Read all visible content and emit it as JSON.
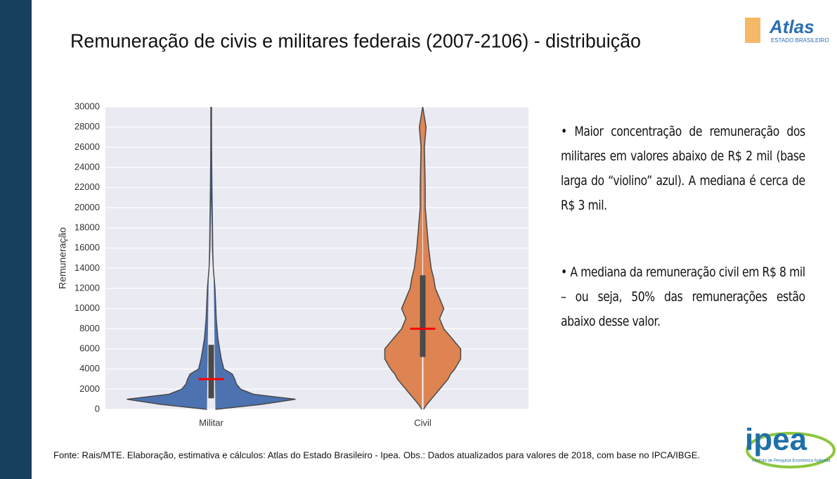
{
  "title": "Remuneração de civis e militares federais (2007-2106) - distribuição",
  "logos": {
    "atlas": "Atlas",
    "atlas_sub": "ESTADO BRASILEIRO",
    "ipea": "ipea",
    "ipea_sub": "Instituto de Pesquisa Econômica Aplicada"
  },
  "bullets": [
    "• Maior concentração de remuneração dos militares em valores abaixo de R$ 2 mil (base larga do “violino” azul). A mediana é cerca de R$ 3 mil.",
    "• A mediana da remuneração civil em R$ 8 mil – ou seja, 50% das remunerações estão abaixo desse valor."
  ],
  "footer": "Fonte: Rais/MTE. Elaboração, estimativa e cálculos: Atlas do Estado Brasileiro - Ipea. Obs.: Dados atualizados para valores de 2018, com base no IPCA/IBGE.",
  "chart_data": {
    "type": "violin",
    "y_label": "Remuneração",
    "categories": [
      "Militar",
      "Civil"
    ],
    "ylim": [
      0,
      30000
    ],
    "yticks": [
      0,
      2000,
      4000,
      6000,
      8000,
      10000,
      12000,
      14000,
      16000,
      18000,
      20000,
      22000,
      24000,
      26000,
      28000,
      30000
    ],
    "grid": true,
    "density_y": [
      0,
      500,
      1000,
      1500,
      2000,
      2500,
      3000,
      3500,
      4000,
      5000,
      6000,
      7000,
      8000,
      9000,
      10000,
      11000,
      12000,
      13000,
      14000,
      16000,
      18000,
      20000,
      22000,
      24000,
      26000,
      28000,
      30000
    ],
    "series": [
      {
        "name": "Militar",
        "color": "#4c72b0",
        "median": 3000,
        "q1": 1100,
        "q3": 6400,
        "density": [
          0.05,
          0.6,
          1.0,
          0.5,
          0.35,
          0.3,
          0.28,
          0.25,
          0.15,
          0.12,
          0.1,
          0.08,
          0.07,
          0.06,
          0.055,
          0.05,
          0.045,
          0.035,
          0.025,
          0.015,
          0.012,
          0.008,
          0.004,
          0.004,
          0.004,
          0.004,
          0.004
        ]
      },
      {
        "name": "Civil",
        "color": "#dd8452",
        "median": 8000,
        "q1": 5200,
        "q3": 13300,
        "density": [
          0.01,
          0.05,
          0.1,
          0.15,
          0.2,
          0.25,
          0.3,
          0.33,
          0.38,
          0.45,
          0.45,
          0.35,
          0.25,
          0.2,
          0.25,
          0.2,
          0.15,
          0.13,
          0.1,
          0.07,
          0.05,
          0.03,
          0.03,
          0.025,
          0.02,
          0.04,
          0.0
        ]
      }
    ],
    "median_color": "#ff0000"
  }
}
